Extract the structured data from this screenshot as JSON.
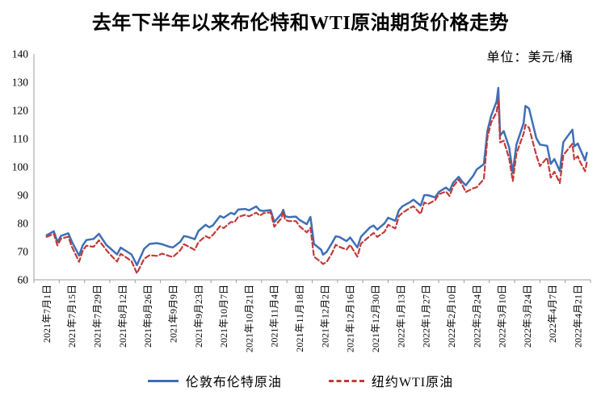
{
  "title": "去年下半年以来布伦特和WTI原油期货价格走势",
  "unit_label": "单位：美元/桶",
  "colors": {
    "brent_line": "#3f6fb5",
    "wti_line": "#c13b38",
    "axis": "#9d9d9d",
    "text": "#000000",
    "background": "#ffffff"
  },
  "chart_data": {
    "type": "line",
    "title": "去年下半年以来布伦特和WTI原油期货价格走势",
    "ylabel": "美元/桶",
    "xlabel": "",
    "ylim": [
      60,
      140
    ],
    "y_ticks": [
      60,
      70,
      80,
      90,
      100,
      110,
      120,
      130,
      140
    ],
    "grid": false,
    "legend_position": "bottom",
    "x_tick_interval_days": 14,
    "x_tick_labels": [
      "2021年7月1日",
      "2021年7月15日",
      "2021年7月29日",
      "2021年8月12日",
      "2021年8月26日",
      "2021年9月9日",
      "2021年9月23日",
      "2021年10月7日",
      "2021年10月21日",
      "2021年11月4日",
      "2021年11月18日",
      "2021年12月2日",
      "2021年12月16日",
      "2021年12月30日",
      "2022年1月13日",
      "2022年1月27日",
      "2022年2月10日",
      "2022年2月24日",
      "2022年3月10日",
      "2022年3月24日",
      "2022年4月7日",
      "2022年4月21日"
    ],
    "dates": [
      "2021-07-01",
      "2021-07-05",
      "2021-07-07",
      "2021-07-09",
      "2021-07-13",
      "2021-07-15",
      "2021-07-19",
      "2021-07-21",
      "2021-07-23",
      "2021-07-27",
      "2021-07-30",
      "2021-08-03",
      "2021-08-05",
      "2021-08-09",
      "2021-08-11",
      "2021-08-13",
      "2021-08-17",
      "2021-08-20",
      "2021-08-24",
      "2021-08-27",
      "2021-08-31",
      "2021-09-03",
      "2021-09-07",
      "2021-09-09",
      "2021-09-13",
      "2021-09-15",
      "2021-09-17",
      "2021-09-21",
      "2021-09-23",
      "2021-09-27",
      "2021-09-29",
      "2021-10-01",
      "2021-10-05",
      "2021-10-07",
      "2021-10-11",
      "2021-10-13",
      "2021-10-15",
      "2021-10-19",
      "2021-10-21",
      "2021-10-25",
      "2021-10-27",
      "2021-10-29",
      "2021-11-02",
      "2021-11-04",
      "2021-11-08",
      "2021-11-09",
      "2021-11-10",
      "2021-11-12",
      "2021-11-16",
      "2021-11-18",
      "2021-11-22",
      "2021-11-24",
      "2021-11-26",
      "2021-11-30",
      "2021-12-01",
      "2021-12-03",
      "2021-12-06",
      "2021-12-08",
      "2021-12-10",
      "2021-12-14",
      "2021-12-16",
      "2021-12-20",
      "2021-12-22",
      "2021-12-27",
      "2021-12-29",
      "2021-12-31",
      "2022-01-04",
      "2022-01-06",
      "2022-01-10",
      "2022-01-12",
      "2022-01-14",
      "2022-01-18",
      "2022-01-20",
      "2022-01-24",
      "2022-01-26",
      "2022-01-28",
      "2022-02-01",
      "2022-02-03",
      "2022-02-07",
      "2022-02-09",
      "2022-02-11",
      "2022-02-14",
      "2022-02-16",
      "2022-02-18",
      "2022-02-22",
      "2022-02-24",
      "2022-02-28",
      "2022-03-02",
      "2022-03-04",
      "2022-03-07",
      "2022-03-08",
      "2022-03-09",
      "2022-03-11",
      "2022-03-14",
      "2022-03-16",
      "2022-03-18",
      "2022-03-22",
      "2022-03-23",
      "2022-03-25",
      "2022-03-29",
      "2022-03-31",
      "2022-04-04",
      "2022-04-06",
      "2022-04-08",
      "2022-04-11",
      "2022-04-13",
      "2022-04-18",
      "2022-04-19",
      "2022-04-21",
      "2022-04-22",
      "2022-04-25",
      "2022-04-26"
    ],
    "series": [
      {
        "name": "伦敦布伦特原油",
        "color": "#3f6fb5",
        "style": "solid",
        "values": [
          75.8,
          77.2,
          73.4,
          75.6,
          76.5,
          73.5,
          68.6,
          72.2,
          74.1,
          74.5,
          76.3,
          72.4,
          71.3,
          69.0,
          71.4,
          70.6,
          69.0,
          65.2,
          71.0,
          72.7,
          73.0,
          72.6,
          71.7,
          71.5,
          73.5,
          75.5,
          75.3,
          74.4,
          77.3,
          79.5,
          78.6,
          79.3,
          82.6,
          82.0,
          83.7,
          83.2,
          84.9,
          85.1,
          84.6,
          86.0,
          84.6,
          84.4,
          84.7,
          80.5,
          83.4,
          84.8,
          82.6,
          82.2,
          82.4,
          81.2,
          79.7,
          82.3,
          72.7,
          70.6,
          68.9,
          69.9,
          73.1,
          75.4,
          75.2,
          73.7,
          75.0,
          71.5,
          75.3,
          78.6,
          79.2,
          77.8,
          80.0,
          82.0,
          80.9,
          84.7,
          86.1,
          87.5,
          88.4,
          86.3,
          90.0,
          90.0,
          89.2,
          91.1,
          92.7,
          91.6,
          94.4,
          96.5,
          94.8,
          93.5,
          96.8,
          99.1,
          101.0,
          112.9,
          118.1,
          123.2,
          128.0,
          111.1,
          112.7,
          106.9,
          98.0,
          107.9,
          115.5,
          121.6,
          120.7,
          110.2,
          107.9,
          107.5,
          101.1,
          102.8,
          98.5,
          108.8,
          113.2,
          107.3,
          108.3,
          106.7,
          102.3,
          105.0
        ]
      },
      {
        "name": "纽约WTI原油",
        "color": "#c13b38",
        "style": "dashed",
        "values": [
          75.2,
          76.3,
          72.2,
          74.6,
          75.3,
          71.7,
          66.4,
          70.3,
          72.1,
          71.7,
          74.0,
          70.6,
          69.1,
          66.5,
          69.2,
          68.4,
          66.6,
          62.3,
          67.5,
          68.7,
          68.5,
          69.3,
          68.4,
          68.1,
          70.5,
          72.6,
          72.0,
          70.6,
          73.3,
          75.5,
          74.8,
          75.9,
          79.0,
          78.3,
          80.5,
          80.4,
          82.3,
          83.0,
          82.5,
          83.8,
          82.7,
          83.6,
          83.9,
          78.8,
          81.9,
          84.2,
          81.3,
          80.8,
          80.8,
          79.0,
          76.8,
          78.4,
          68.2,
          66.2,
          65.6,
          66.3,
          69.5,
          72.4,
          71.7,
          70.7,
          72.4,
          68.2,
          72.8,
          75.6,
          76.6,
          75.2,
          77.0,
          79.5,
          78.2,
          82.6,
          83.8,
          85.4,
          86.1,
          83.3,
          87.4,
          86.8,
          88.2,
          90.3,
          91.3,
          89.7,
          93.1,
          95.5,
          93.7,
          91.1,
          92.4,
          92.8,
          95.7,
          110.6,
          115.7,
          119.4,
          123.7,
          108.7,
          109.3,
          103.0,
          95.0,
          104.7,
          111.8,
          114.9,
          113.9,
          104.2,
          100.3,
          103.3,
          96.2,
          98.3,
          94.3,
          104.2,
          108.2,
          102.6,
          103.8,
          102.1,
          98.5,
          101.7
        ]
      }
    ]
  }
}
